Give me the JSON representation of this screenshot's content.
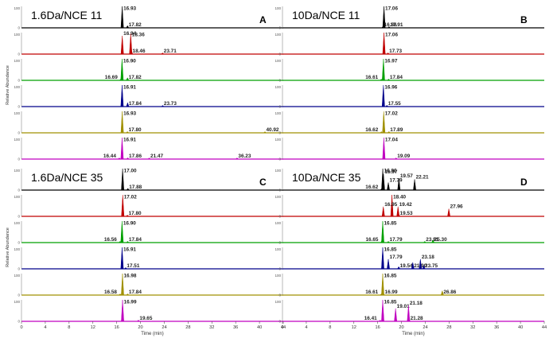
{
  "chart_data": [
    {
      "type": "line",
      "id": "A",
      "panel_label": "A",
      "title": "1.6Da/NCE 11",
      "ylabel": "Relative Abundance",
      "xlabel": "",
      "xlim": [
        0,
        44
      ],
      "xticks": [],
      "ytick_label": "100",
      "baseline_tick_label": "0",
      "series": [
        {
          "color": "#000000",
          "peaks": [
            {
              "x": 16.93,
              "h": 1.0,
              "label": "16.93"
            },
            {
              "x": 17.82,
              "h": 0.1,
              "label": "17.82"
            }
          ]
        },
        {
          "color": "#c00000",
          "peaks": [
            {
              "x": 16.94,
              "h": 0.85,
              "label": "16.94"
            },
            {
              "x": 18.36,
              "h": 0.95,
              "label": "18.36"
            },
            {
              "x": 18.46,
              "h": 0.2,
              "label": "18.46"
            },
            {
              "x": 23.71,
              "h": 0.05,
              "label": "23.71"
            }
          ]
        },
        {
          "color": "#00a000",
          "peaks": [
            {
              "x": 16.9,
              "h": 1.0,
              "label": "16.90"
            },
            {
              "x": 16.69,
              "h": 0.04,
              "label": "16.69"
            },
            {
              "x": 17.82,
              "h": 0.12,
              "label": "17.82"
            }
          ]
        },
        {
          "color": "#00008b",
          "peaks": [
            {
              "x": 16.91,
              "h": 1.0,
              "label": "16.91"
            },
            {
              "x": 17.84,
              "h": 0.18,
              "label": "17.84"
            },
            {
              "x": 23.73,
              "h": 0.04,
              "label": "23.73"
            }
          ]
        },
        {
          "color": "#a09000",
          "peaks": [
            {
              "x": 16.93,
              "h": 1.0,
              "label": "16.93"
            },
            {
              "x": 17.8,
              "h": 0.06,
              "label": "17.80"
            },
            {
              "x": 40.92,
              "h": 0.04,
              "label": "40.92"
            }
          ]
        },
        {
          "color": "#c000c0",
          "peaks": [
            {
              "x": 16.91,
              "h": 1.0,
              "label": "16.91"
            },
            {
              "x": 16.44,
              "h": 0.04,
              "label": "16.44"
            },
            {
              "x": 17.86,
              "h": 0.06,
              "label": "17.86"
            },
            {
              "x": 21.47,
              "h": 0.04,
              "label": "21.47"
            },
            {
              "x": 36.23,
              "h": 0.04,
              "label": "36.23"
            }
          ]
        }
      ]
    },
    {
      "type": "line",
      "id": "B",
      "panel_label": "B",
      "title": "10Da/NCE 11",
      "ylabel": "",
      "xlabel": "",
      "xlim": [
        0,
        44
      ],
      "xticks": [],
      "ytick_label": "100",
      "baseline_tick_label": "0",
      "series": [
        {
          "color": "#000000",
          "peaks": [
            {
              "x": 17.06,
              "h": 1.0,
              "label": "17.06"
            },
            {
              "x": 16.86,
              "h": 0.05,
              "label": "16.86"
            },
            {
              "x": 17.91,
              "h": 0.05,
              "label": "17.91"
            }
          ]
        },
        {
          "color": "#c00000",
          "peaks": [
            {
              "x": 17.06,
              "h": 1.0,
              "label": "17.06"
            },
            {
              "x": 17.73,
              "h": 0.06,
              "label": "17.73"
            }
          ]
        },
        {
          "color": "#00a000",
          "peaks": [
            {
              "x": 16.97,
              "h": 1.0,
              "label": "16.97"
            },
            {
              "x": 16.61,
              "h": 0.05,
              "label": "16.61"
            },
            {
              "x": 17.84,
              "h": 0.06,
              "label": "17.84"
            }
          ]
        },
        {
          "color": "#00008b",
          "peaks": [
            {
              "x": 16.96,
              "h": 1.0,
              "label": "16.96"
            },
            {
              "x": 17.55,
              "h": 0.06,
              "label": "17.55"
            }
          ]
        },
        {
          "color": "#a09000",
          "peaks": [
            {
              "x": 17.02,
              "h": 1.0,
              "label": "17.02"
            },
            {
              "x": 16.62,
              "h": 0.05,
              "label": "16.62"
            },
            {
              "x": 17.89,
              "h": 0.06,
              "label": "17.89"
            }
          ]
        },
        {
          "color": "#c000c0",
          "peaks": [
            {
              "x": 17.04,
              "h": 1.0,
              "label": "17.04"
            },
            {
              "x": 19.09,
              "h": 0.05,
              "label": "19.09"
            }
          ]
        }
      ]
    },
    {
      "type": "line",
      "id": "C",
      "panel_label": "C",
      "title": "1.6Da/NCE 35",
      "ylabel": "Relative Abundance",
      "xlabel": "Time (min)",
      "xlim": [
        0,
        44
      ],
      "xticks": [
        "0",
        "4",
        "8",
        "12",
        "16",
        "20",
        "24",
        "28",
        "32",
        "36",
        "40",
        "44"
      ],
      "ytick_label": "100",
      "baseline_tick_label": "0",
      "series": [
        {
          "color": "#000000",
          "peaks": [
            {
              "x": 17.0,
              "h": 1.0,
              "label": "17.00"
            },
            {
              "x": 17.88,
              "h": 0.08,
              "label": "17.88"
            }
          ]
        },
        {
          "color": "#c00000",
          "peaks": [
            {
              "x": 17.02,
              "h": 1.0,
              "label": "17.02"
            },
            {
              "x": 17.8,
              "h": 0.06,
              "label": "17.80"
            }
          ]
        },
        {
          "color": "#00a000",
          "peaks": [
            {
              "x": 16.9,
              "h": 1.0,
              "label": "16.90"
            },
            {
              "x": 16.56,
              "h": 0.04,
              "label": "16.56"
            },
            {
              "x": 17.84,
              "h": 0.06,
              "label": "17.84"
            }
          ]
        },
        {
          "color": "#00008b",
          "peaks": [
            {
              "x": 16.91,
              "h": 1.0,
              "label": "16.91"
            },
            {
              "x": 17.51,
              "h": 0.06,
              "label": "17.51"
            }
          ]
        },
        {
          "color": "#a09000",
          "peaks": [
            {
              "x": 16.98,
              "h": 1.0,
              "label": "16.98"
            },
            {
              "x": 16.58,
              "h": 0.04,
              "label": "16.58"
            },
            {
              "x": 17.84,
              "h": 0.06,
              "label": "17.84"
            }
          ]
        },
        {
          "color": "#c000c0",
          "peaks": [
            {
              "x": 16.99,
              "h": 1.0,
              "label": "16.99"
            },
            {
              "x": 19.65,
              "h": 0.06,
              "label": "19.65"
            }
          ]
        }
      ]
    },
    {
      "type": "line",
      "id": "D",
      "panel_label": "D",
      "title": "10Da/NCE 35",
      "ylabel": "",
      "xlabel": "Time (min)",
      "xlim": [
        0,
        44
      ],
      "xticks": [
        "0",
        "4",
        "8",
        "12",
        "16",
        "20",
        "24",
        "28",
        "32",
        "36",
        "40",
        "44"
      ],
      "ytick_label": "100",
      "baseline_tick_label": "0",
      "series": [
        {
          "color": "#000000",
          "peaks": [
            {
              "x": 16.86,
              "h": 1.0,
              "label": "16.86"
            },
            {
              "x": 16.97,
              "h": 0.75,
              "label": "16.97"
            },
            {
              "x": 16.62,
              "h": 0.05,
              "label": "16.62"
            },
            {
              "x": 17.79,
              "h": 0.35,
              "label": "17.79"
            },
            {
              "x": 19.57,
              "h": 0.55,
              "label": "19.57"
            },
            {
              "x": 22.21,
              "h": 0.5,
              "label": "22.21"
            }
          ]
        },
        {
          "color": "#c00000",
          "peaks": [
            {
              "x": 18.4,
              "h": 1.0,
              "label": "18.40"
            },
            {
              "x": 16.95,
              "h": 0.45,
              "label": "16.95"
            },
            {
              "x": 19.42,
              "h": 0.45,
              "label": "19.42"
            },
            {
              "x": 19.53,
              "h": 0.1,
              "label": "19.53"
            },
            {
              "x": 27.96,
              "h": 0.35,
              "label": "27.96"
            }
          ]
        },
        {
          "color": "#00a000",
          "peaks": [
            {
              "x": 16.85,
              "h": 1.0,
              "label": "16.85"
            },
            {
              "x": 16.65,
              "h": 0.05,
              "label": "16.65"
            },
            {
              "x": 17.79,
              "h": 0.06,
              "label": "17.79"
            },
            {
              "x": 23.91,
              "h": 0.05,
              "label": "23.91"
            },
            {
              "x": 25.3,
              "h": 0.12,
              "label": "25.30"
            }
          ]
        },
        {
          "color": "#00008b",
          "peaks": [
            {
              "x": 16.85,
              "h": 1.0,
              "label": "16.85"
            },
            {
              "x": 17.79,
              "h": 0.45,
              "label": "17.79"
            },
            {
              "x": 19.54,
              "h": 0.1,
              "label": "19.54"
            },
            {
              "x": 21.9,
              "h": 0.3,
              "label": "21.90"
            },
            {
              "x": 23.18,
              "h": 0.45,
              "label": "23.18"
            },
            {
              "x": 23.75,
              "h": 0.15,
              "label": "23.75"
            }
          ]
        },
        {
          "color": "#a09000",
          "peaks": [
            {
              "x": 16.85,
              "h": 1.0,
              "label": "16.85"
            },
            {
              "x": 16.61,
              "h": 0.05,
              "label": "16.61"
            },
            {
              "x": 16.99,
              "h": 0.05,
              "label": "16.99"
            },
            {
              "x": 26.86,
              "h": 0.2,
              "label": "26.86"
            }
          ]
        },
        {
          "color": "#c000c0",
          "peaks": [
            {
              "x": 16.85,
              "h": 1.0,
              "label": "16.85"
            },
            {
              "x": 19.01,
              "h": 0.6,
              "label": "19.01"
            },
            {
              "x": 21.18,
              "h": 0.75,
              "label": "21.18"
            },
            {
              "x": 16.41,
              "h": 0.05,
              "label": "16.41"
            },
            {
              "x": 21.28,
              "h": 0.1,
              "label": "21.28"
            }
          ]
        }
      ]
    }
  ]
}
